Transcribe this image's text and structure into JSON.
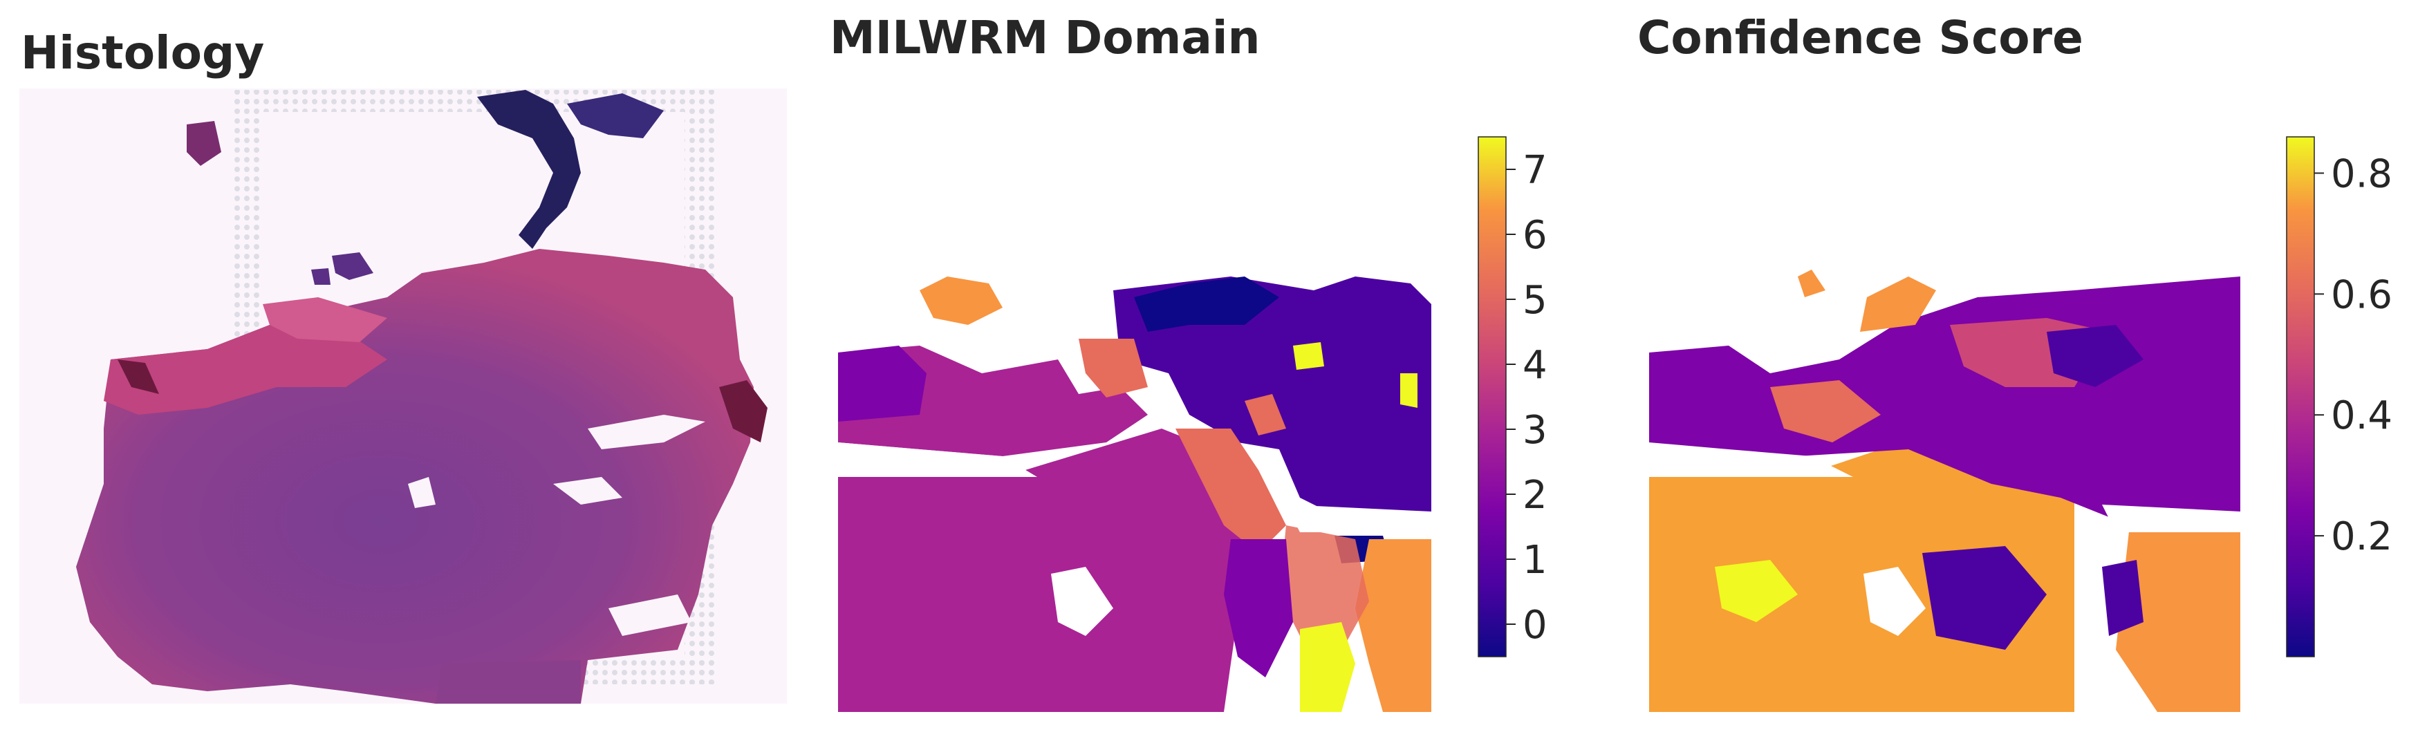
{
  "panels": {
    "histology": {
      "title": "Histology"
    },
    "domain": {
      "title": "MILWRM Domain"
    },
    "confidence": {
      "title": "Confidence Score"
    }
  },
  "colors": {
    "text": "#262626",
    "tissue_pink": "#c0447f",
    "tissue_purple": "#5e2b86",
    "tissue_dark": "#24205e"
  },
  "chart_data": [
    {
      "type": "image",
      "title": "Histology",
      "description_of_content": "H&E stained tissue section"
    },
    {
      "type": "heatmap",
      "title": "MILWRM Domain",
      "colormap": "plasma (discrete, 8 levels)",
      "colorbar": {
        "min": -0.5,
        "max": 7.5,
        "ticks": [
          0,
          1,
          2,
          3,
          4,
          5,
          6,
          7
        ],
        "tick_labels": [
          "0",
          "1",
          "2",
          "3",
          "4",
          "5",
          "6",
          "7"
        ],
        "level_colors": [
          "#0d0887",
          "#4c02a1",
          "#7e03a8",
          "#a92395",
          "#cc4778",
          "#e66c5c",
          "#f89540",
          "#f0f921"
        ]
      },
      "grid": false
    },
    {
      "type": "heatmap",
      "title": "Confidence Score",
      "colormap": "plasma (continuous)",
      "colorbar": {
        "min": 0.0,
        "max": 0.86,
        "ticks": [
          0.2,
          0.4,
          0.6,
          0.8
        ],
        "tick_labels": [
          "0.2",
          "0.4",
          "0.6",
          "0.8"
        ]
      },
      "grid": false
    }
  ]
}
